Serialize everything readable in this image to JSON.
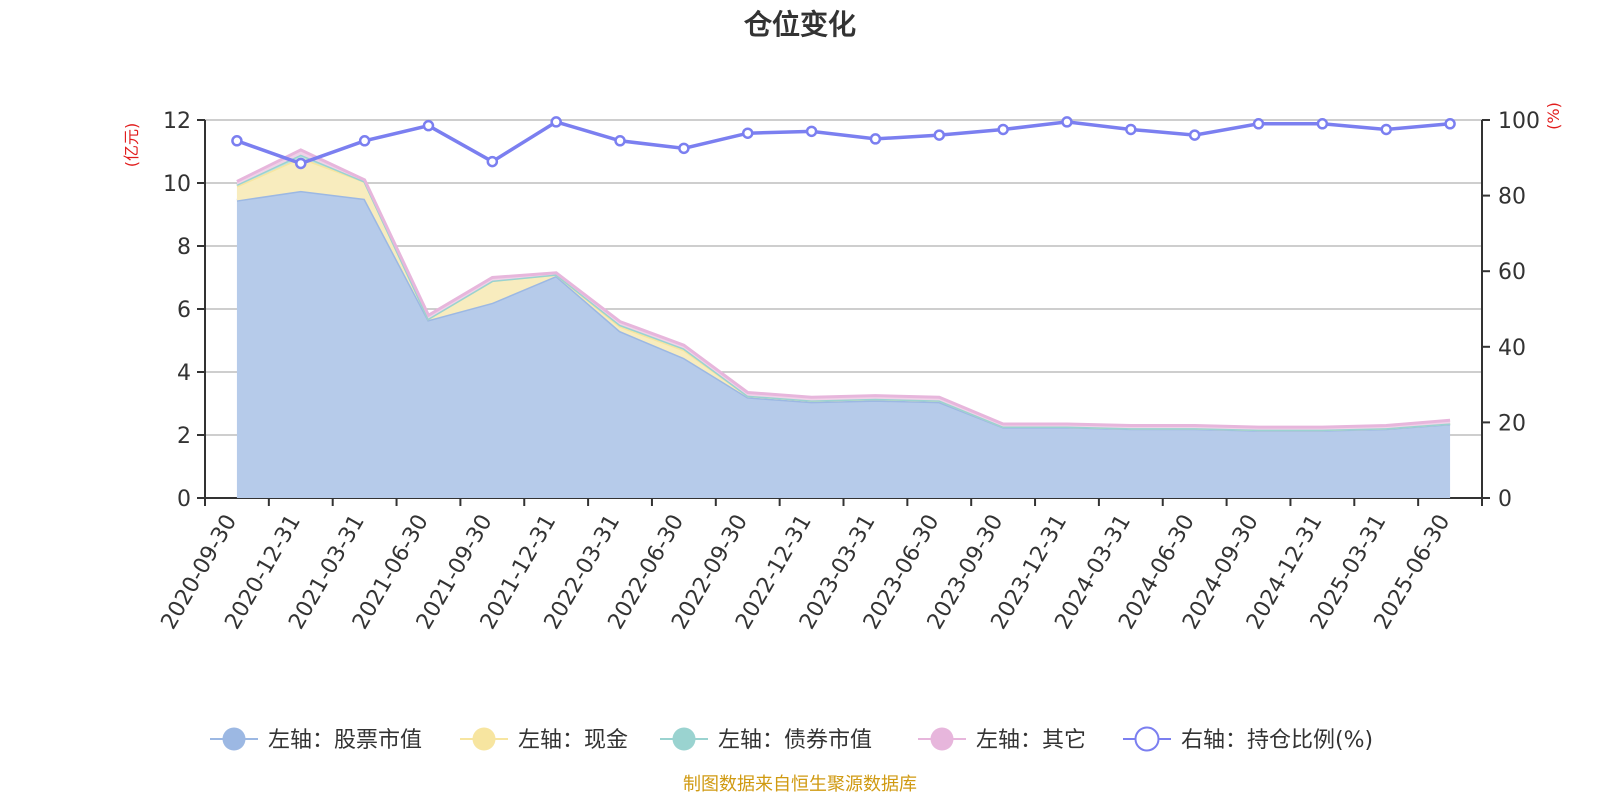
{
  "chart_data": {
    "type": "area",
    "title": "仓位变化",
    "source_note": "制图数据来自恒生聚源数据库",
    "left_axis_unit": "(亿元)",
    "right_axis_unit": "(%)",
    "categories": [
      "2020-09-30",
      "2020-12-31",
      "2021-03-31",
      "2021-06-30",
      "2021-09-30",
      "2021-12-31",
      "2022-03-31",
      "2022-06-30",
      "2022-09-30",
      "2022-12-31",
      "2023-03-31",
      "2023-06-30",
      "2023-09-30",
      "2023-12-31",
      "2024-03-31",
      "2024-06-30",
      "2024-09-30",
      "2024-12-31",
      "2025-03-31",
      "2025-06-30"
    ],
    "left_axis": {
      "min": 0,
      "max": 12,
      "ticks": [
        0,
        2,
        4,
        6,
        8,
        10,
        12
      ]
    },
    "right_axis": {
      "min": 0,
      "max": 100,
      "ticks": [
        0,
        20,
        40,
        60,
        80,
        100
      ]
    },
    "stacked_series": [
      {
        "name": "左轴：股票市值",
        "color": "#9cb8e3",
        "fill": "#b6cbea",
        "values": [
          9.45,
          9.75,
          9.5,
          5.65,
          6.2,
          7.05,
          5.3,
          4.45,
          3.2,
          3.05,
          3.1,
          3.05,
          2.25,
          2.25,
          2.2,
          2.2,
          2.15,
          2.15,
          2.2,
          2.35
        ]
      },
      {
        "name": "左轴：现金",
        "color": "#f7e5a0",
        "fill": "#f8ecbe",
        "values": [
          0.45,
          1.05,
          0.55,
          0.05,
          0.7,
          0.05,
          0.15,
          0.25,
          0.05,
          0.05,
          0.05,
          0.05,
          0.02,
          0.02,
          0.02,
          0.02,
          0.02,
          0.02,
          0.02,
          0.02
        ]
      },
      {
        "name": "左轴：债券市值",
        "color": "#9ad3d0",
        "fill": "#bfe3e0",
        "values": [
          0.05,
          0.1,
          0.0,
          0.0,
          0.0,
          0.0,
          0.05,
          0.05,
          0.0,
          0.0,
          0.0,
          0.0,
          0.0,
          0.0,
          0.0,
          0.0,
          0.0,
          0.0,
          0.0,
          0.0
        ]
      },
      {
        "name": "左轴：其它",
        "color": "#e7b6dc",
        "fill": "#f0d2e8",
        "values": [
          0.1,
          0.15,
          0.05,
          0.1,
          0.1,
          0.05,
          0.1,
          0.1,
          0.1,
          0.1,
          0.1,
          0.1,
          0.08,
          0.08,
          0.08,
          0.08,
          0.08,
          0.08,
          0.08,
          0.1
        ]
      }
    ],
    "line_series": {
      "name": "右轴：持仓比例(%)",
      "color": "#7b7ff0",
      "values": [
        94.5,
        88.5,
        94.5,
        98.5,
        89.0,
        99.5,
        94.5,
        92.5,
        96.5,
        97.0,
        95.0,
        96.0,
        97.5,
        99.5,
        97.5,
        96.0,
        99.0,
        99.0,
        97.5,
        99.0
      ]
    },
    "grid": true,
    "legend_position": "bottom"
  }
}
